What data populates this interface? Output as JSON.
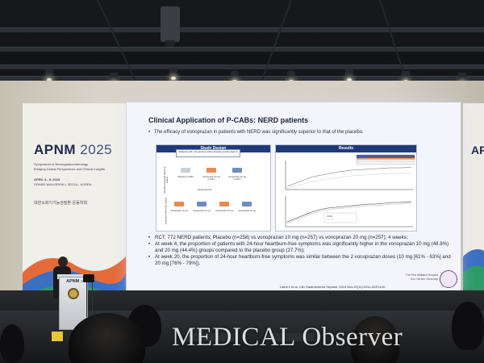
{
  "banner_left": {
    "logo": "APNM",
    "year": "2025",
    "subtitle_1": "Symposium of Neurogastroenterology",
    "subtitle_2": "Bridging Global Perspectives and Clinical Insights",
    "dates": "APRIL 3 - 5, 2025",
    "venue": "GRAND WALKERHILL SEOUL, KOREA",
    "society": "대한소화기기능성질환·운동학회"
  },
  "banner_right": {
    "logo": "AP"
  },
  "slide": {
    "title": "Clinical Application of P-CABs: NERD patients",
    "subtitle": "The efficacy of vonoprazan in patients with NERD was significantly superior to that of the placebo.",
    "design_header": "Study Design",
    "results_header": "Results",
    "design_box": "Subjects with non-erosive reflux disease randomised to",
    "side_label_top": "Placebo-controlled period (4 weeks)",
    "side_label_bottom": "Extension Period (20 weeks)",
    "rerandomise": "Re-Randomise",
    "arms": [
      {
        "label": "Placebo (n=258)",
        "color": "#c9ced9"
      },
      {
        "label": "Vonoprazan 10 mg (n=257)",
        "color": "#e58a52"
      },
      {
        "label": "Vonoprazan 20 mg (n=257)",
        "color": "#6e8cc2"
      }
    ],
    "ext_arms": [
      {
        "label": "Vonoprazan 10 mg",
        "color": "#e58a52"
      },
      {
        "label": "Vonoprazan 20 mg",
        "color": "#6e8cc2"
      },
      {
        "label": "Vonoprazan 10 mg",
        "color": "#e58a52"
      },
      {
        "label": "Vonoprazan 20 mg",
        "color": "#6e8cc2"
      }
    ],
    "bullets": [
      "RCT; 772 NERD patients; Placebo (n=258) vs vonoprazan 10 mg (n=257) vs vonoprazan 20 mg (n=257); 4 weeks;",
      "At week 4, the proportion of patients with 24-hour heartburn-free symptoms was significantly higher in the vonoprazan 10 mg (48.8%) and 20 mg (44.4%) groups compared to the placebo group (27.7%);",
      "At week 20, the proportion of 24-hour heartburn-free symptoms was similar between the 2 vonoprazan doses (10 mg [61% - 63%] and 20 mg [76% - 79%])."
    ],
    "reference": "Laine L et al. Clin Gastroenterol Hepatol. 2024 Nov;22(11):2211-2220.e10.",
    "hospital_line_1": "The First Affiliated Hospital",
    "hospital_line_2": "Sun Yat-sen University"
  },
  "podium": {
    "label": "APNM",
    "year": "2025"
  },
  "watermark": "MEDICAL Observer",
  "colors": {
    "slide_header_navy": "#1f3a78",
    "slide_bg": "#f4f5fb",
    "banner_navy": "#1e2a4a",
    "series_1": "#333333",
    "series_2": "#888888"
  }
}
